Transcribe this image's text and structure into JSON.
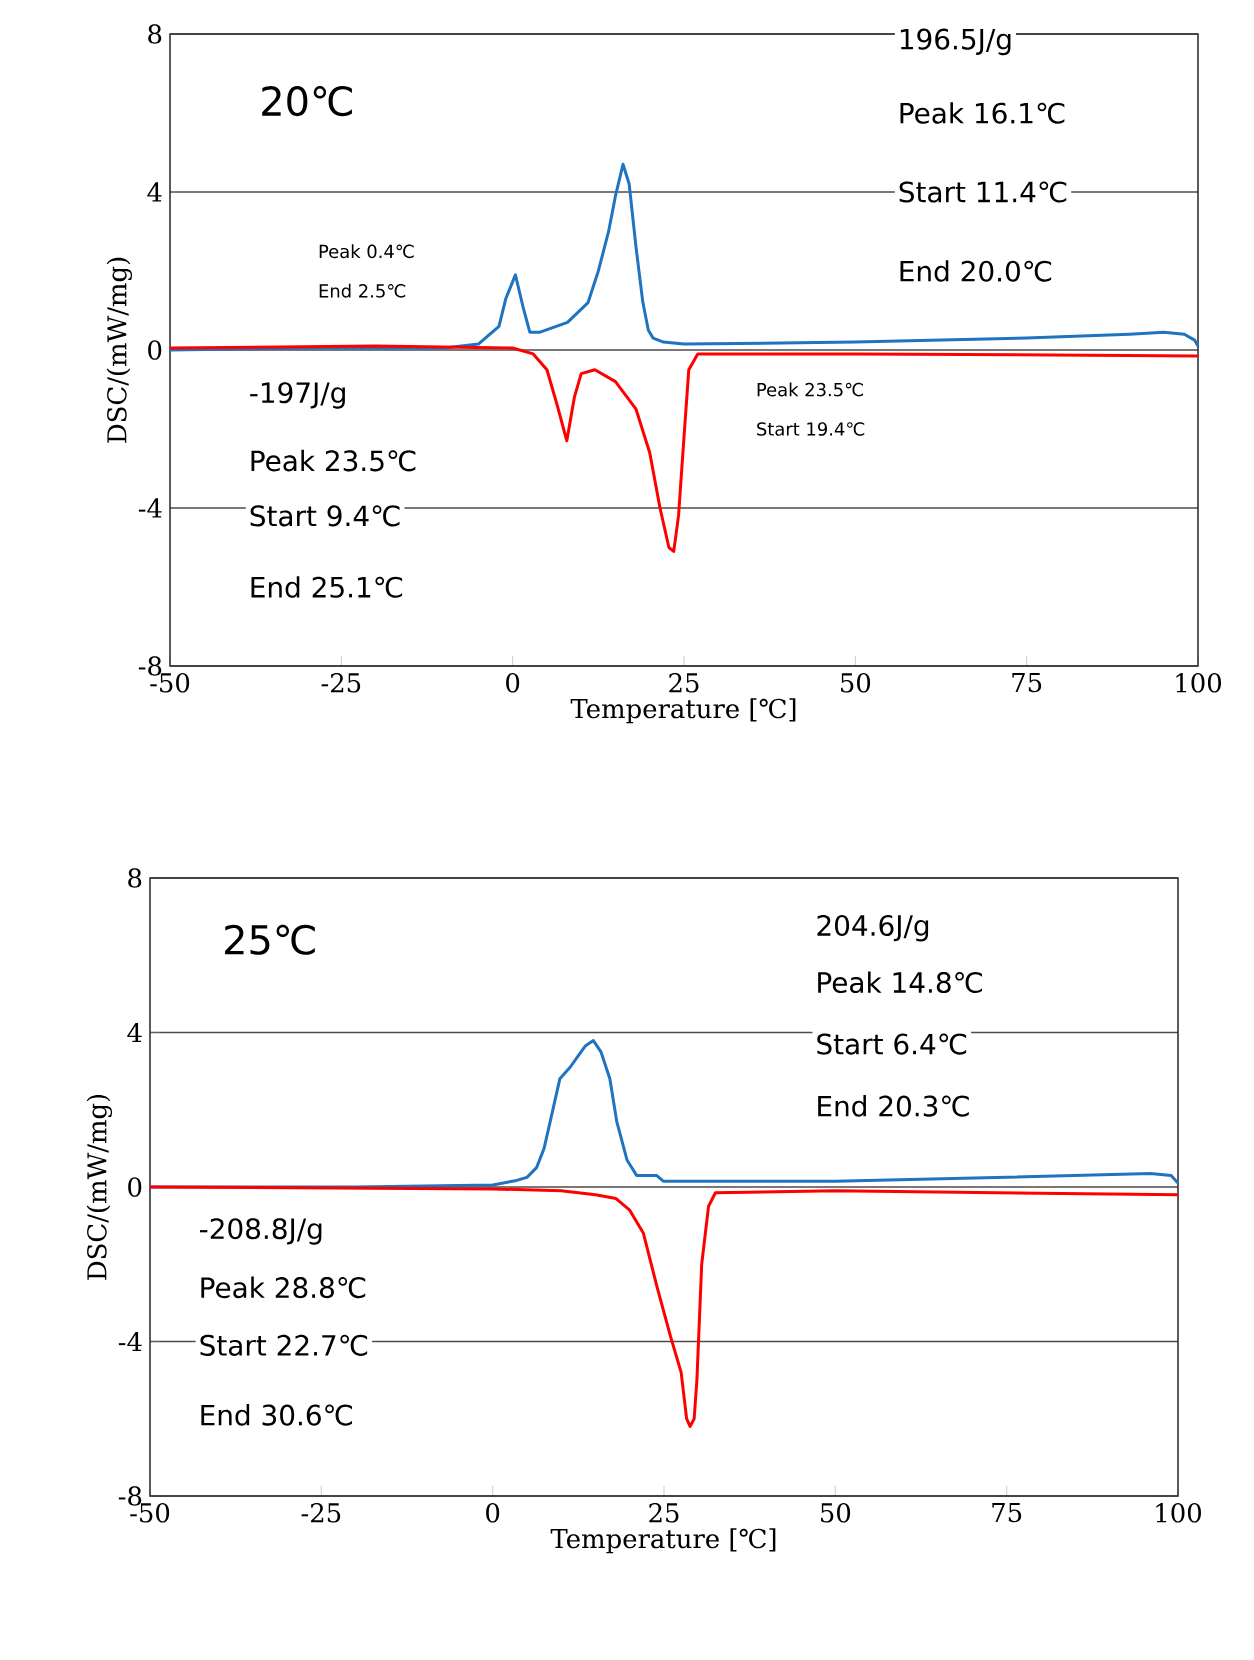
{
  "chart_data": [
    {
      "type": "line",
      "title": "20℃",
      "xlabel": "Temperature [℃]",
      "ylabel": "DSC/(mW/mg)",
      "xlim": [
        -50,
        100
      ],
      "ylim": [
        -8,
        8
      ],
      "xticks": [
        -50,
        -25,
        0,
        25,
        50,
        75,
        100
      ],
      "yticks": [
        -8,
        -4,
        0,
        4,
        8
      ],
      "grid": "y",
      "series": [
        {
          "color": "#1f74c0",
          "x": [
            -50,
            -30,
            -10,
            -5,
            -2,
            -1,
            0.4,
            1.5,
            2.5,
            4,
            8,
            11,
            12.5,
            14,
            15,
            16.1,
            17,
            18,
            19,
            19.8,
            20.5,
            22,
            25,
            50,
            75,
            90,
            95,
            98,
            99.5,
            100
          ],
          "values": [
            0.0,
            0.05,
            0.05,
            0.15,
            0.6,
            1.3,
            1.9,
            1.1,
            0.45,
            0.45,
            0.7,
            1.2,
            2.0,
            3.0,
            3.9,
            4.7,
            4.2,
            2.6,
            1.2,
            0.5,
            0.3,
            0.2,
            0.15,
            0.2,
            0.3,
            0.4,
            0.45,
            0.4,
            0.25,
            0.1
          ]
        },
        {
          "color": "#ff0000",
          "x": [
            -50,
            -20,
            0,
            3,
            5,
            6.5,
            7.9,
            9,
            10,
            12,
            15,
            18,
            20,
            21.5,
            22.8,
            23.5,
            24.2,
            25,
            25.7,
            27,
            50,
            100
          ],
          "values": [
            0.05,
            0.1,
            0.05,
            -0.1,
            -0.5,
            -1.4,
            -2.3,
            -1.2,
            -0.6,
            -0.5,
            -0.8,
            -1.5,
            -2.6,
            -4.0,
            -5.0,
            -5.1,
            -4.2,
            -2.2,
            -0.5,
            -0.1,
            -0.1,
            -0.15
          ]
        }
      ],
      "annotations": [
        "196.5J/g",
        "Peak 16.1℃",
        "Start 11.4℃",
        "End 20.0℃",
        "-197J/g",
        "Peak 23.5℃",
        "Start 9.4℃",
        "End 25.1℃",
        "Peak 0.4℃",
        "End 2.5℃",
        "Peak 23.5℃",
        "Start 19.4℃"
      ]
    },
    {
      "type": "line",
      "title": "25℃",
      "xlabel": "Temperature [℃]",
      "ylabel": "DSC/(mW/mg)",
      "xlim": [
        -50,
        100
      ],
      "ylim": [
        -8,
        8
      ],
      "xticks": [
        -50,
        -25,
        0,
        25,
        50,
        75,
        100
      ],
      "yticks": [
        -8,
        -4,
        0,
        4,
        8
      ],
      "grid": "y",
      "series": [
        {
          "color": "#1f74c0",
          "x": [
            -50,
            -20,
            0,
            3.5,
            5,
            6.4,
            7.5,
            8.4,
            9.8,
            11.3,
            12.5,
            13.5,
            14.7,
            15.8,
            17.1,
            18.1,
            19.6,
            21,
            23,
            23.9,
            24.9,
            50,
            75,
            96,
            99,
            100
          ],
          "values": [
            0.0,
            0.0,
            0.05,
            0.17,
            0.25,
            0.5,
            1.0,
            1.7,
            2.8,
            3.1,
            3.4,
            3.65,
            3.79,
            3.5,
            2.8,
            1.7,
            0.7,
            0.3,
            0.3,
            0.3,
            0.15,
            0.15,
            0.25,
            0.35,
            0.3,
            0.1
          ]
        },
        {
          "color": "#ff0000",
          "x": [
            -50,
            0,
            10,
            15,
            18,
            20,
            22,
            24,
            26,
            27.5,
            28.3,
            28.8,
            29.4,
            29.8,
            30.5,
            31.5,
            32.5,
            50,
            100
          ],
          "values": [
            0.0,
            -0.05,
            -0.1,
            -0.2,
            -0.3,
            -0.6,
            -1.2,
            -2.6,
            -3.9,
            -4.8,
            -6.0,
            -6.2,
            -6.0,
            -5.0,
            -2.0,
            -0.5,
            -0.15,
            -0.1,
            -0.2
          ]
        }
      ],
      "annotations": [
        "204.6J/g",
        "Peak 14.8℃",
        "Start 6.4℃",
        "End 20.3℃",
        "-208.8J/g",
        "Peak 28.8℃",
        "Start 22.7℃",
        "End 30.6℃"
      ]
    }
  ]
}
